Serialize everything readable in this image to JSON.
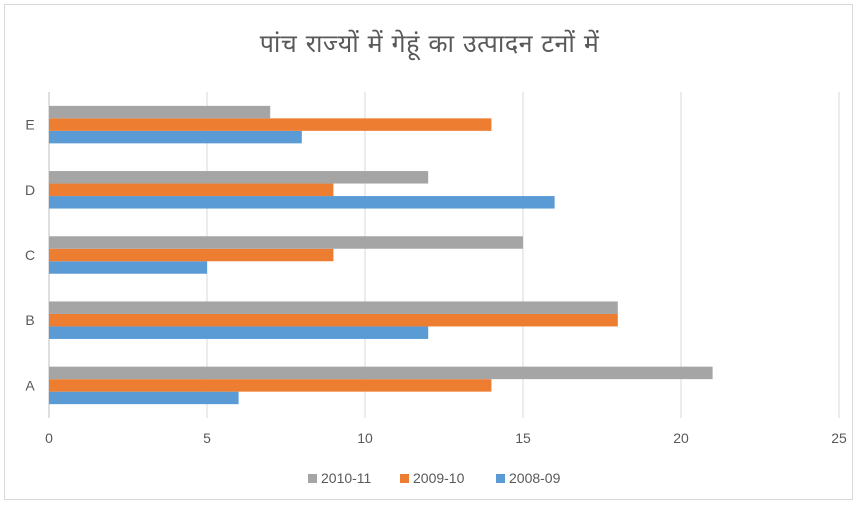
{
  "chart_data": {
    "type": "bar",
    "orientation": "horizontal",
    "title": "पांच राज्यों में गेहूं का उत्पादन टनों में",
    "categories": [
      "A",
      "B",
      "C",
      "D",
      "E"
    ],
    "series": [
      {
        "name": "2008-09",
        "color": "#5B9BD5",
        "values": [
          6,
          12,
          5,
          16,
          8
        ]
      },
      {
        "name": "2009-10",
        "color": "#ED7D31",
        "values": [
          14,
          18,
          9,
          9,
          14
        ]
      },
      {
        "name": "2010-11",
        "color": "#A5A5A5",
        "values": [
          21,
          18,
          15,
          12,
          7
        ]
      }
    ],
    "xlim": [
      0,
      25
    ],
    "x_ticks": [
      "0",
      "5",
      "10",
      "15",
      "20",
      "25"
    ],
    "grid": true,
    "legend_position": "bottom",
    "legend_order": [
      "2010-11",
      "2009-10",
      "2008-09"
    ]
  }
}
